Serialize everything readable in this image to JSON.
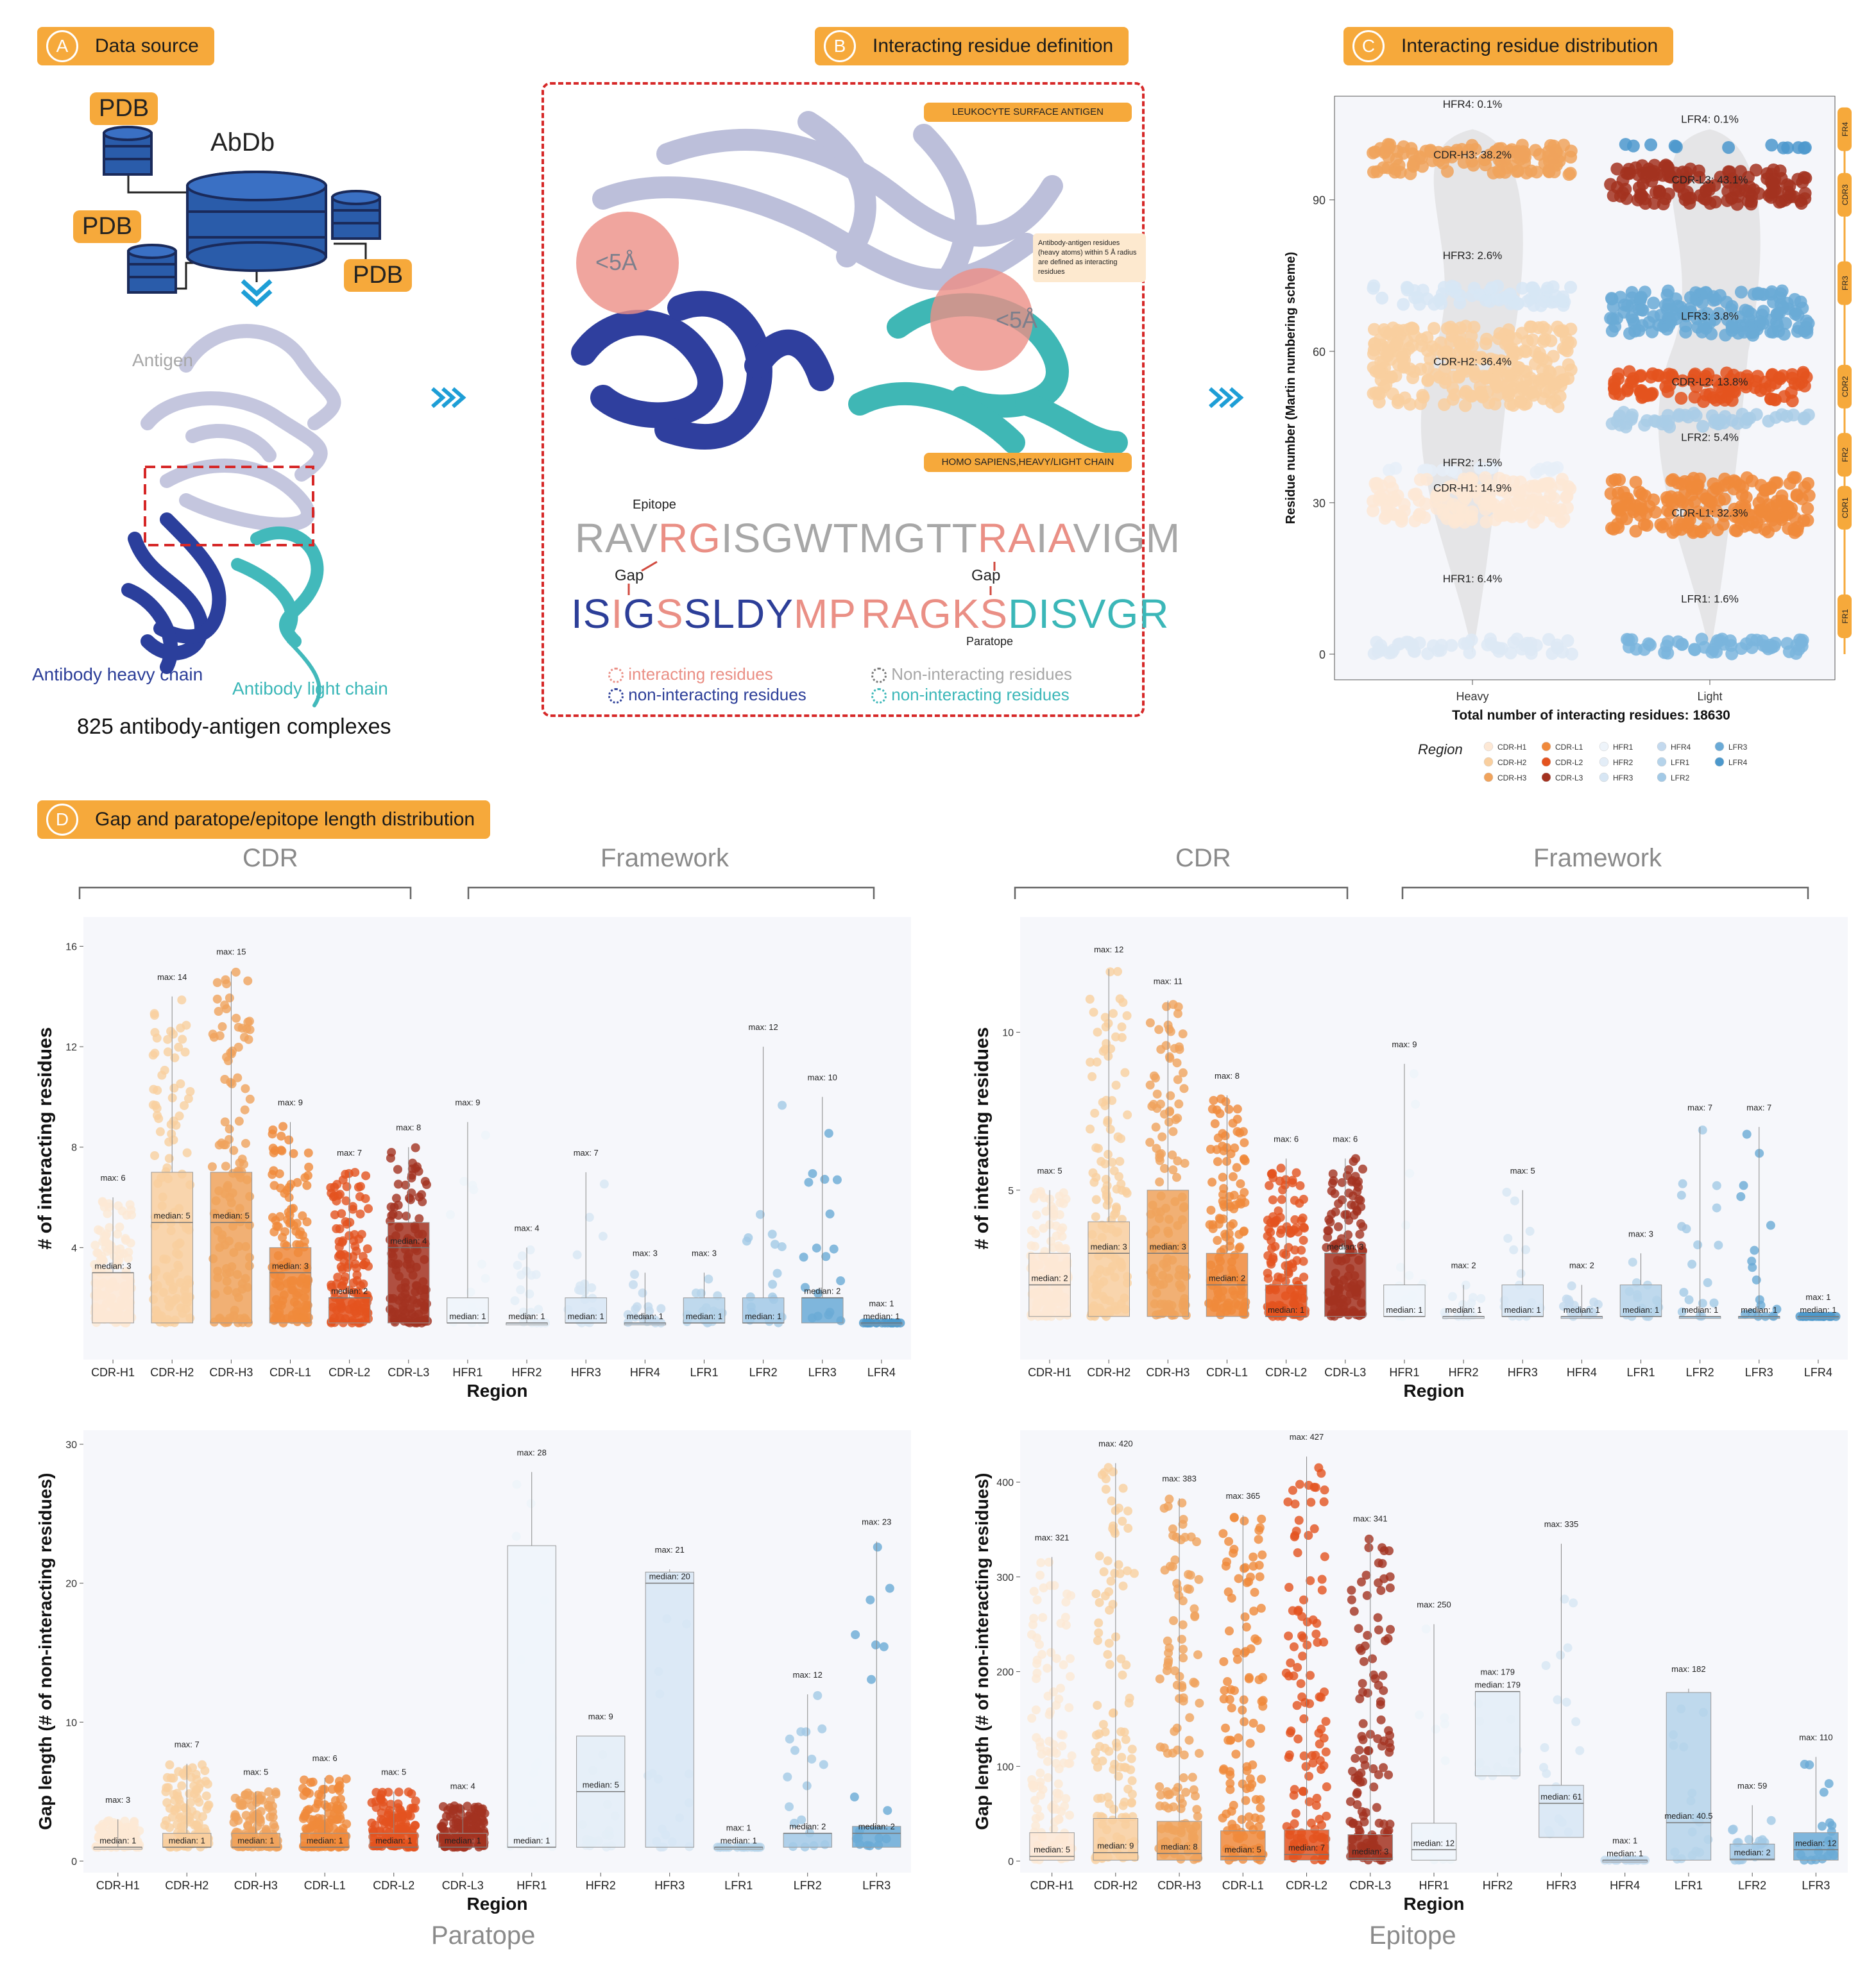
{
  "panelA": {
    "letter": "A",
    "title": "Data source",
    "db_label": "AbDb",
    "pdb_labels": [
      "PDB",
      "PDB",
      "PDB"
    ],
    "antigen_label": "Antigen",
    "heavy_label": "Antibody heavy chain",
    "light_label": "Antibody light chain",
    "complexes": "825 antibody-antigen complexes"
  },
  "panelB": {
    "letter": "B",
    "title": "Interacting residue definition",
    "antigen_tag": "LEUKOCYTE SURFACE ANTIGEN",
    "chain_tag": "HOMO SAPIENS,HEAVY/LIGHT CHAIN",
    "note": "Antibody-antigen residues (heavy atoms) within 5 Å radius are defined as interacting residues",
    "radius_label": "<5Å",
    "epitope_label": "Epitope",
    "paratope_label": "Paratope",
    "gap_label": "Gap",
    "epitope_seq": "RAVRGISGWTMGTTRAIAVIGM",
    "heavy_seq": "ISIGSSLDYMP",
    "light_seq": "RAGKSDISVGR",
    "legend": [
      "interacting residues",
      "non-interacting residues",
      "Non-interacting residues",
      "non-interacting residues"
    ],
    "colors": {
      "interact": "#ea8f85",
      "heavy": "#2c3e98",
      "light": "#3bb7b8",
      "antigen": "#a7a7a7"
    }
  },
  "panelC": {
    "letter": "C",
    "title": "Interacting residue distribution",
    "ylabel": "Residue number (Martin numbering scheme)",
    "xlabel": "Total number of interacting residues: 18630",
    "chart_data": {
      "type": "scatter",
      "categories": [
        "Heavy",
        "Light"
      ],
      "ylim": [
        0,
        100
      ],
      "yticks": [
        0,
        30,
        60,
        90
      ],
      "heavy_regions": [
        {
          "name": "HFR4",
          "pct": "0.1%",
          "y": [
            100,
            100
          ],
          "color": "#f0a35c",
          "label_y": 109
        },
        {
          "name": "CDR-H3",
          "pct": "38.2%",
          "y": [
            95,
            101
          ],
          "color": "#f0a35c",
          "label_y": 99
        },
        {
          "name": "HFR3",
          "pct": "2.6%",
          "y": [
            69,
            73
          ],
          "color": "#d7e6f4",
          "label_y": 79
        },
        {
          "name": "CDR-H2",
          "pct": "36.4%",
          "y": [
            49,
            65
          ],
          "color": "#f9cf9f",
          "label_y": 58
        },
        {
          "name": "HFR2",
          "pct": "1.5%",
          "y": [
            36,
            37
          ],
          "color": "#e6eef8",
          "label_y": 38
        },
        {
          "name": "CDR-H1",
          "pct": "14.9%",
          "y": [
            26,
            35
          ],
          "color": "#fde8d5",
          "label_y": 33
        },
        {
          "name": "HFR1",
          "pct": "6.4%",
          "y": [
            0,
            3
          ],
          "color": "#dde9f5",
          "label_y": 15
        }
      ],
      "light_regions": [
        {
          "name": "LFR4",
          "pct": "0.1%",
          "y": [
            101,
            101
          ],
          "color": "#4c98cc",
          "label_y": 106
        },
        {
          "name": "CDR-L3",
          "pct": "43.1%",
          "y": [
            89,
            97
          ],
          "color": "#a33220",
          "label_y": 94
        },
        {
          "name": "LFR3",
          "pct": "3.8%",
          "y": [
            63,
            72
          ],
          "color": "#6aaad6",
          "label_y": 67
        },
        {
          "name": "CDR-L2",
          "pct": "13.8%",
          "y": [
            50,
            56
          ],
          "color": "#e4531f",
          "label_y": 54
        },
        {
          "name": "LFR2",
          "pct": "5.4%",
          "y": [
            45,
            48
          ],
          "color": "#a9cde6",
          "label_y": 43
        },
        {
          "name": "CDR-L1",
          "pct": "32.3%",
          "y": [
            24,
            35
          ],
          "color": "#f0893b",
          "label_y": 28
        },
        {
          "name": "LFR1",
          "pct": "1.6%",
          "y": [
            0,
            3
          ],
          "color": "#7ab5dd",
          "label_y": 11
        }
      ],
      "side_bands": [
        {
          "name": "FR4",
          "y": [
            100,
            108
          ]
        },
        {
          "name": "CDR3",
          "y": [
            85,
            97
          ]
        },
        {
          "name": "FR3",
          "y": [
            65,
            82
          ]
        },
        {
          "name": "CDR2",
          "y": [
            47,
            59
          ]
        },
        {
          "name": "FR2",
          "y": [
            35,
            44
          ]
        },
        {
          "name": "CDR1",
          "y": [
            24,
            34
          ]
        },
        {
          "name": "FR1",
          "y": [
            0,
            15
          ]
        }
      ],
      "legend_title": "Region",
      "legend": [
        {
          "name": "CDR-H1",
          "color": "#fde8d5"
        },
        {
          "name": "CDR-H2",
          "color": "#f9cf9f"
        },
        {
          "name": "CDR-H3",
          "color": "#f0a35c"
        },
        {
          "name": "CDR-L1",
          "color": "#f0893b"
        },
        {
          "name": "CDR-L2",
          "color": "#e4531f"
        },
        {
          "name": "CDR-L3",
          "color": "#a33220"
        },
        {
          "name": "HFR1",
          "color": "#eef4fa"
        },
        {
          "name": "HFR2",
          "color": "#e3edf7"
        },
        {
          "name": "HFR3",
          "color": "#d7e6f4"
        },
        {
          "name": "HFR4",
          "color": "#c3d9ee"
        },
        {
          "name": "LFR1",
          "color": "#b5d3ea"
        },
        {
          "name": "LFR2",
          "color": "#a2c9e6"
        },
        {
          "name": "LFR3",
          "color": "#6aaad6"
        },
        {
          "name": "LFR4",
          "color": "#4c98cc"
        }
      ]
    }
  },
  "panelD": {
    "letter": "D",
    "title": "Gap and paratope/epitope length distribution",
    "cdr_title": "CDR",
    "fw_title": "Framework",
    "paratope_title": "Paratope",
    "epitope_title": "Epitope",
    "xlabel": "Region",
    "ylabel_top": "# of interacting residues",
    "ylabel_bottom": "Gap length (# of non-interacting residues)",
    "chart_data": [
      {
        "type": "box",
        "id": "paratope-length",
        "yticks": [
          4,
          8,
          12,
          16
        ],
        "ylim": [
          0,
          16.6
        ],
        "categories": [
          "CDR-H1",
          "CDR-H2",
          "CDR-H3",
          "CDR-L1",
          "CDR-L2",
          "CDR-L3",
          "HFR1",
          "HFR2",
          "HFR3",
          "HFR4",
          "LFR1",
          "LFR2",
          "LFR3",
          "LFR4"
        ],
        "median": [
          3,
          5,
          5,
          3,
          2,
          4,
          1,
          1,
          1,
          1,
          1,
          1,
          2,
          1
        ],
        "q1": [
          1,
          1,
          1,
          1,
          1,
          1,
          1,
          1,
          1,
          1,
          1,
          1,
          1,
          1
        ],
        "q3": [
          3,
          7,
          7,
          4,
          2,
          5,
          2,
          1,
          2,
          1,
          2,
          2,
          2,
          1
        ],
        "max": [
          6,
          14,
          15,
          9,
          7,
          8,
          9,
          4,
          7,
          3,
          3,
          12,
          10,
          1
        ],
        "median_labels": [
          "median: 3",
          "median: 5",
          "median: 5",
          "median: 3",
          "median: 2",
          "median: 4",
          "median: 1",
          "median: 1",
          "median: 1",
          "median: 1",
          "median: 1",
          "median: 1",
          "median: 2",
          "median: 1"
        ],
        "max_labels": [
          "max: 6",
          "max: 14",
          "max: 15",
          "max: 9",
          "max: 7",
          "max: 8",
          "max: 9",
          "max: 4",
          "max: 7",
          "max: 3",
          "max: 3",
          "max: 12",
          "max: 10",
          "max: 1"
        ]
      },
      {
        "type": "box",
        "id": "epitope-length",
        "yticks": [
          5,
          10
        ],
        "ylim": [
          0,
          13.2
        ],
        "categories": [
          "CDR-H1",
          "CDR-H2",
          "CDR-H3",
          "CDR-L1",
          "CDR-L2",
          "CDR-L3",
          "HFR1",
          "HFR2",
          "HFR3",
          "HFR4",
          "LFR1",
          "LFR2",
          "LFR3",
          "LFR4"
        ],
        "median": [
          2,
          3,
          3,
          2,
          1,
          3,
          1,
          1,
          1,
          1,
          1,
          1,
          1,
          1
        ],
        "q1": [
          1,
          1,
          1,
          1,
          1,
          1,
          1,
          1,
          1,
          1,
          1,
          1,
          1,
          1
        ],
        "q3": [
          3,
          4,
          5,
          3,
          2,
          3,
          2,
          1,
          2,
          1,
          2,
          1,
          1,
          1
        ],
        "max": [
          5,
          12,
          11,
          8,
          6,
          6,
          9,
          2,
          5,
          2,
          3,
          7,
          7,
          1
        ],
        "median_labels": [
          "median: 2",
          "median: 3",
          "median: 3",
          "median: 2",
          "median: 1",
          "median: 3",
          "median: 1",
          "median: 1",
          "median: 1",
          "median: 1",
          "median: 1",
          "median: 1",
          "median: 1",
          "median: 1"
        ],
        "max_labels": [
          "max: 5",
          "max: 12",
          "max: 11",
          "max: 8",
          "max: 6",
          "max: 6",
          "max: 9",
          "max: 2",
          "max: 5",
          "max: 2",
          "max: 3",
          "max: 7",
          "max: 7",
          "max: 1"
        ]
      },
      {
        "type": "box",
        "id": "paratope-gap",
        "yticks": [
          0,
          10,
          20,
          30
        ],
        "ylim": [
          0,
          30
        ],
        "categories": [
          "CDR-H1",
          "CDR-H2",
          "CDR-H3",
          "CDR-L1",
          "CDR-L2",
          "CDR-L3",
          "HFR1",
          "HFR2",
          "HFR3",
          "LFR1",
          "LFR2",
          "LFR3"
        ],
        "median": [
          1,
          1,
          1,
          1,
          1,
          1,
          1,
          5,
          20,
          1,
          2,
          2
        ],
        "q1": [
          1,
          1,
          1,
          1,
          1,
          1,
          1,
          1,
          1,
          1,
          1,
          1
        ],
        "q3": [
          1,
          2,
          2,
          2,
          2,
          2,
          22.7,
          9,
          20.8,
          1,
          2,
          2.5
        ],
        "max": [
          3,
          7,
          5,
          6,
          5,
          4,
          28,
          9,
          21,
          1,
          12,
          23
        ],
        "median_labels": [
          "median: 1",
          "median: 1",
          "median: 1",
          "median: 1",
          "median: 1",
          "median: 1",
          "median: 1",
          "median: 5",
          "median: 20",
          "median: 1",
          "median: 2",
          "median: 2"
        ],
        "max_labels": [
          "max: 3",
          "max: 7",
          "max: 5",
          "max: 6",
          "max: 5",
          "max: 4",
          "max: 28",
          "max: 9",
          "max: 21",
          "max: 1",
          "max: 12",
          "max: 23"
        ]
      },
      {
        "type": "box",
        "id": "epitope-gap",
        "yticks": [
          0,
          100,
          200,
          300,
          400
        ],
        "ylim": [
          0,
          440
        ],
        "categories": [
          "CDR-H1",
          "CDR-H2",
          "CDR-H3",
          "CDR-L1",
          "CDR-L2",
          "CDR-L3",
          "HFR1",
          "HFR2",
          "HFR3",
          "HFR4",
          "LFR1",
          "LFR2",
          "LFR3"
        ],
        "median": [
          5,
          9,
          8,
          5,
          7,
          3,
          12,
          179,
          61,
          1,
          40.5,
          2,
          12
        ],
        "q1": [
          1,
          1,
          1,
          1,
          1,
          1,
          1,
          90,
          25,
          1,
          1,
          1,
          1
        ],
        "q3": [
          30,
          45,
          42,
          32,
          33,
          28,
          40,
          179,
          80,
          1,
          178,
          18,
          30
        ],
        "max": [
          321,
          420,
          383,
          365,
          427,
          341,
          250,
          179,
          335,
          1,
          182,
          59,
          110
        ],
        "median_labels": [
          "median: 5",
          "median: 9",
          "median: 8",
          "median: 5",
          "median: 7",
          "median: 3",
          "median: 12",
          "median: 179",
          "median: 61",
          "median: 1",
          "median: 40.5",
          "median: 2",
          "median: 12"
        ],
        "max_labels": [
          "max: 321",
          "max: 420",
          "max: 383",
          "max: 365",
          "max: 427",
          "max: 341",
          "max: 250",
          "max: 179",
          "max: 335",
          "max: 1",
          "max: 182",
          "max: 59",
          "max: 110"
        ]
      }
    ],
    "colors": {
      "CDR-H1": "#fde8d5",
      "CDR-H2": "#f9cf9f",
      "CDR-H3": "#f0a35c",
      "CDR-L1": "#f0893b",
      "CDR-L2": "#e4531f",
      "CDR-L3": "#a33220",
      "HFR1": "#eef4fa",
      "HFR2": "#e3edf7",
      "HFR3": "#d7e6f4",
      "HFR4": "#c3d9ee",
      "LFR1": "#b5d3ea",
      "LFR2": "#a2c9e6",
      "LFR3": "#6aaad6",
      "LFR4": "#4c98cc"
    }
  }
}
